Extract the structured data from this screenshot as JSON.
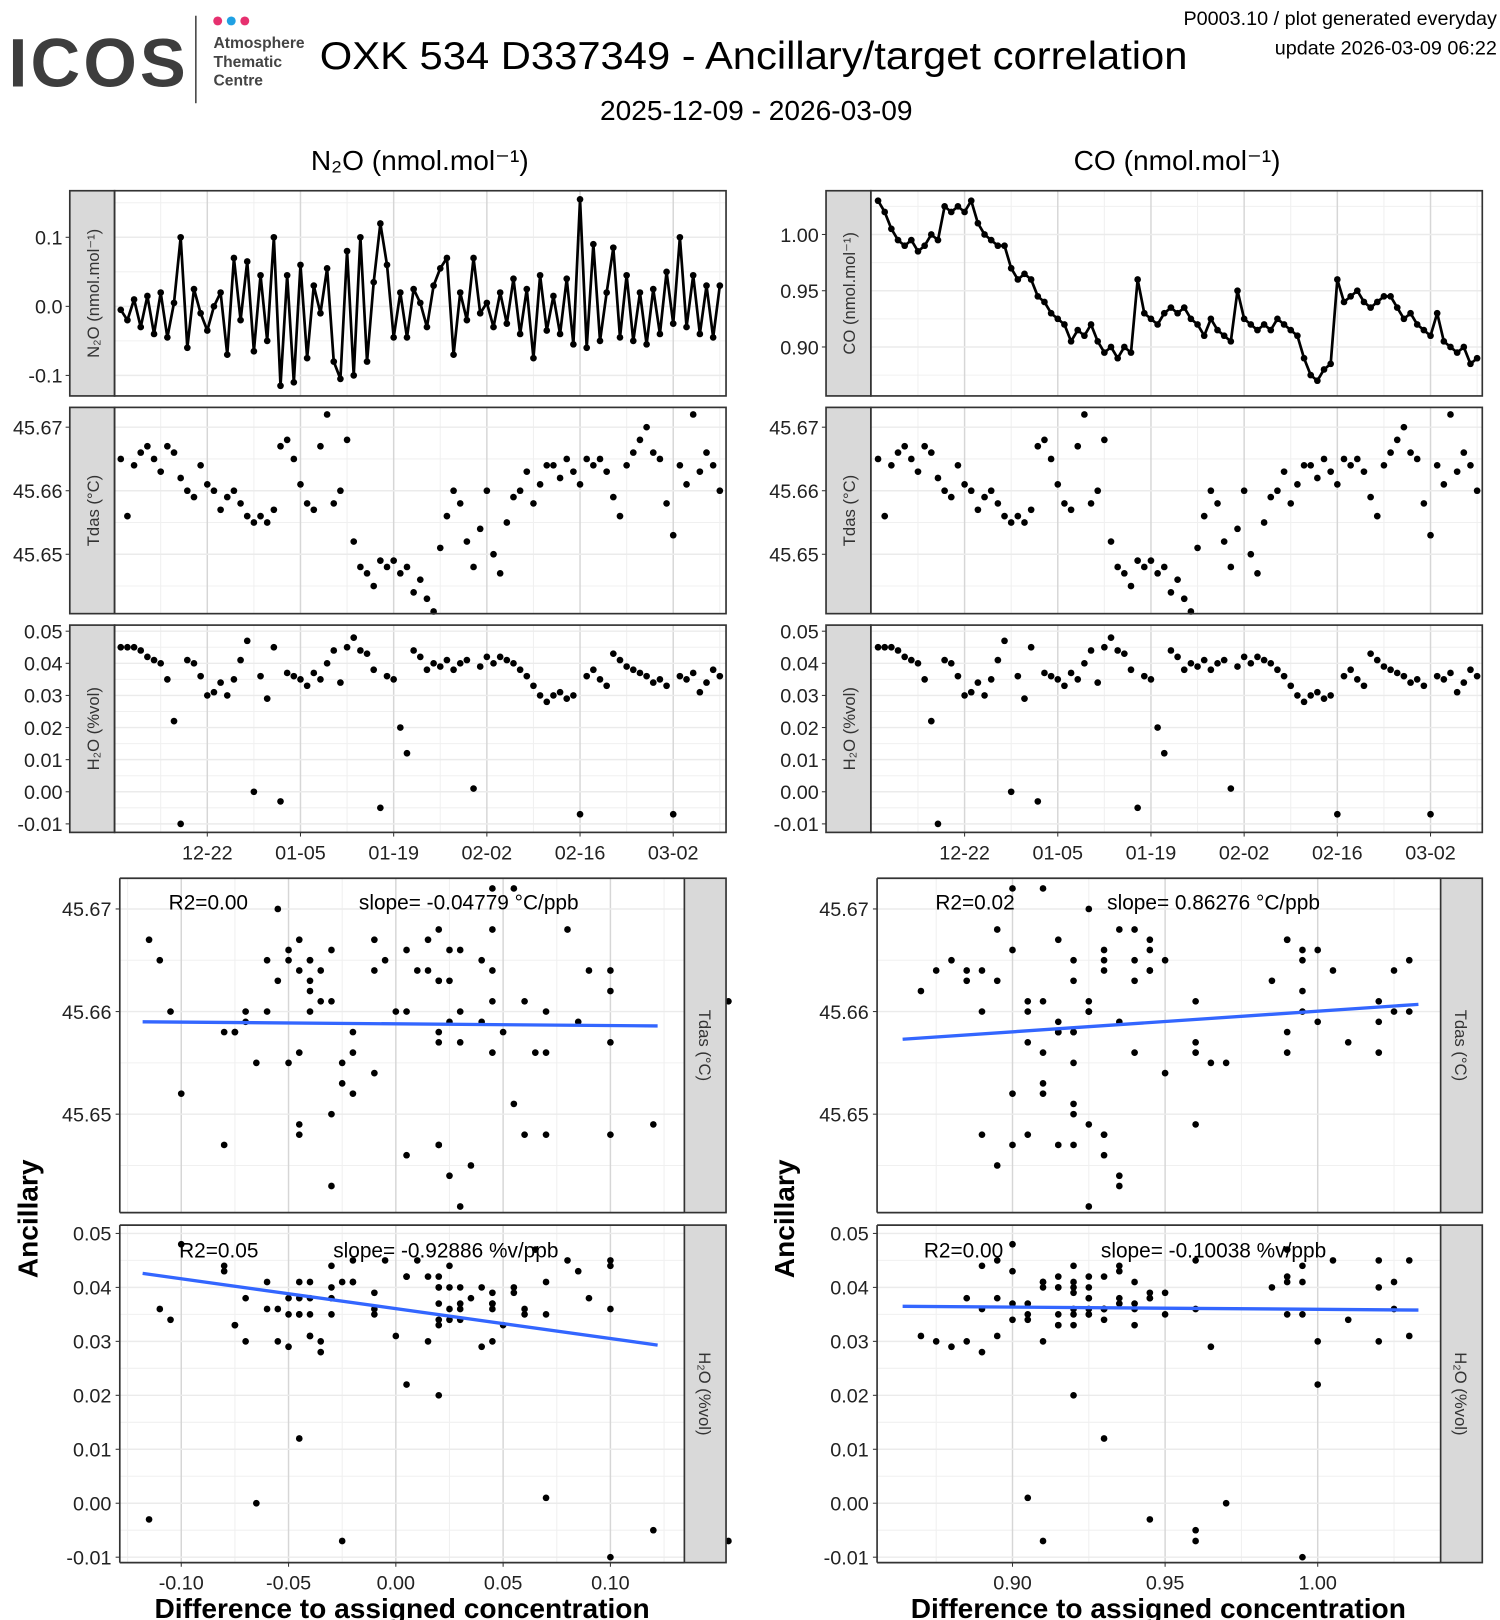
{
  "header": {
    "logo_text": "ICOS",
    "logo_sub": [
      "Atmosphere",
      "Thematic",
      "Centre"
    ],
    "logo_dot_colors": [
      "#e6306f",
      "#1fa0e3",
      "#e6306f"
    ],
    "title": "OXK 534 D337349 - Ancillary/target correlation",
    "date_range": "2025-12-09 - 2026-03-09",
    "meta_line1": "P0003.10 / plot generated everyday",
    "meta_line2": "update  2026-03-09 06:22"
  },
  "columns": {
    "n2o_title": "N₂O (nmol.mol⁻¹)",
    "co_title": "CO (nmol.mol⁻¹)"
  },
  "colors": {
    "fit_line": "#3366ff",
    "points": "#000000",
    "strip": "#d9d9d9"
  },
  "chart_data": [
    {
      "type": "line",
      "name": "timeseries",
      "start_date": "2025-12-09",
      "x_tick_labels": [
        "12-22",
        "01-05",
        "01-19",
        "02-02",
        "02-16",
        "03-02"
      ],
      "x_tick_days": [
        13,
        27,
        41,
        55,
        69,
        83
      ],
      "strip_labels": {
        "n2o": "N₂O (nmol.mol⁻¹)",
        "co": "CO (nmol.mol⁻¹)",
        "tdas": "Tdas (°C)",
        "h2o": "H₂O (%vol)"
      },
      "y_ticks": {
        "n2o": [
          "-0.1",
          "0.0",
          "0.1"
        ],
        "co": [
          "0.90",
          "0.95",
          "1.00"
        ],
        "tdas": [
          "45.65",
          "45.66",
          "45.67"
        ],
        "h2o": [
          "-0.01",
          "0.00",
          "0.01",
          "0.02",
          "0.03",
          "0.04",
          "0.05"
        ]
      },
      "series": {
        "n2o": [
          -0.005,
          -0.02,
          0.01,
          -0.03,
          0.015,
          -0.04,
          0.02,
          -0.045,
          0.005,
          0.1,
          -0.06,
          0.025,
          -0.01,
          -0.035,
          0.0,
          0.02,
          -0.07,
          0.07,
          -0.02,
          0.065,
          -0.065,
          0.045,
          -0.05,
          0.1,
          -0.115,
          0.045,
          -0.11,
          0.06,
          -0.075,
          0.03,
          -0.01,
          0.055,
          -0.08,
          -0.105,
          0.08,
          -0.1,
          0.1,
          -0.08,
          0.035,
          0.12,
          0.06,
          -0.045,
          0.02,
          -0.045,
          0.025,
          0.005,
          -0.03,
          0.03,
          0.055,
          0.07,
          -0.07,
          0.02,
          -0.02,
          0.07,
          -0.01,
          0.005,
          -0.03,
          0.02,
          -0.025,
          0.04,
          -0.04,
          0.025,
          -0.075,
          0.045,
          -0.035,
          0.015,
          -0.04,
          0.04,
          -0.055,
          0.155,
          -0.06,
          0.09,
          -0.05,
          0.02,
          0.085,
          -0.045,
          0.045,
          -0.05,
          0.02,
          -0.055,
          0.025,
          -0.04,
          0.05,
          -0.025,
          0.1,
          -0.03,
          0.045,
          -0.04,
          0.03,
          -0.045,
          0.03
        ],
        "co": [
          1.03,
          1.02,
          1.005,
          0.995,
          0.99,
          0.995,
          0.985,
          0.99,
          1.0,
          0.995,
          1.025,
          1.02,
          1.025,
          1.02,
          1.03,
          1.01,
          1.0,
          0.995,
          0.99,
          0.99,
          0.97,
          0.96,
          0.965,
          0.96,
          0.945,
          0.94,
          0.93,
          0.925,
          0.92,
          0.905,
          0.915,
          0.91,
          0.92,
          0.905,
          0.895,
          0.9,
          0.89,
          0.9,
          0.895,
          0.96,
          0.93,
          0.925,
          0.92,
          0.93,
          0.935,
          0.93,
          0.935,
          0.925,
          0.92,
          0.91,
          0.925,
          0.915,
          0.91,
          0.905,
          0.95,
          0.925,
          0.92,
          0.915,
          0.92,
          0.915,
          0.925,
          0.92,
          0.915,
          0.91,
          0.89,
          0.875,
          0.87,
          0.88,
          0.885,
          0.96,
          0.94,
          0.945,
          0.95,
          0.94,
          0.935,
          0.94,
          0.945,
          0.945,
          0.935,
          0.925,
          0.93,
          0.92,
          0.915,
          0.91,
          0.93,
          0.905,
          0.9,
          0.895,
          0.9,
          0.885,
          0.89
        ],
        "tdas": [
          45.665,
          45.656,
          45.664,
          45.666,
          45.667,
          45.665,
          45.663,
          45.667,
          45.666,
          45.662,
          45.66,
          45.659,
          45.664,
          45.661,
          45.66,
          45.657,
          45.659,
          45.66,
          45.658,
          45.656,
          45.655,
          45.656,
          45.655,
          45.657,
          45.667,
          45.668,
          45.665,
          45.661,
          45.658,
          45.657,
          45.667,
          45.672,
          45.658,
          45.66,
          45.668,
          45.652,
          45.648,
          45.647,
          45.645,
          45.649,
          45.648,
          45.649,
          45.647,
          45.648,
          45.644,
          45.646,
          45.643,
          45.641,
          45.651,
          45.656,
          45.66,
          45.658,
          45.652,
          45.648,
          45.654,
          45.66,
          45.65,
          45.647,
          45.655,
          45.659,
          45.66,
          45.663,
          45.658,
          45.661,
          45.664,
          45.664,
          45.662,
          45.665,
          45.663,
          45.661,
          45.665,
          45.664,
          45.665,
          45.663,
          45.659,
          45.656,
          45.664,
          45.666,
          45.668,
          45.67,
          45.666,
          45.665,
          45.658,
          45.653,
          45.664,
          45.661,
          45.672,
          45.663,
          45.666,
          45.664,
          45.66
        ],
        "h2o": [
          0.045,
          0.045,
          0.045,
          0.044,
          0.042,
          0.041,
          0.04,
          0.035,
          0.022,
          -0.01,
          0.041,
          0.04,
          0.036,
          0.03,
          0.031,
          0.034,
          0.03,
          0.035,
          0.041,
          0.047,
          0.0,
          0.036,
          0.029,
          0.045,
          -0.003,
          0.037,
          0.036,
          0.035,
          0.033,
          0.037,
          0.035,
          0.04,
          0.044,
          0.034,
          0.045,
          0.048,
          0.044,
          0.043,
          0.038,
          -0.005,
          0.036,
          0.035,
          0.02,
          0.012,
          0.044,
          0.042,
          0.038,
          0.04,
          0.039,
          0.041,
          0.038,
          0.04,
          0.041,
          0.001,
          0.039,
          0.042,
          0.04,
          0.042,
          0.041,
          0.04,
          0.038,
          0.036,
          0.033,
          0.03,
          0.028,
          0.03,
          0.031,
          0.029,
          0.03,
          -0.007,
          0.036,
          0.038,
          0.035,
          0.033,
          0.043,
          0.041,
          0.039,
          0.038,
          0.037,
          0.036,
          0.034,
          0.035,
          0.033,
          -0.007,
          0.036,
          0.035,
          0.037,
          0.031,
          0.034,
          0.038,
          0.036
        ]
      }
    },
    {
      "type": "scatter",
      "name": "correlation",
      "xlabel": "Difference to assigned concentration",
      "ylabel": "Ancillary",
      "x_ticks": {
        "n2o": [
          "-0.10",
          "-0.05",
          "0.00",
          "0.05",
          "0.10"
        ],
        "co": [
          "0.90",
          "0.95",
          "1.00"
        ]
      },
      "y_ticks": {
        "tdas": [
          "45.65",
          "45.66",
          "45.67"
        ],
        "h2o": [
          "-0.01",
          "0.00",
          "0.01",
          "0.02",
          "0.03",
          "0.04",
          "0.05"
        ]
      },
      "strip_labels": {
        "tdas": "Tdas (°C)",
        "h2o": "H₂O (%vol)"
      },
      "panels": [
        {
          "x": "n2o",
          "y": "tdas",
          "r2": "R2=0.00",
          "slope": "slope= -0.04779 °C/ppb",
          "fit": [
            [
              -0.118,
              45.659
            ],
            [
              0.122,
              45.6586
            ]
          ]
        },
        {
          "x": "n2o",
          "y": "h2o",
          "r2": "R2=0.05",
          "slope": "slope= -0.92886 %v/ppb",
          "fit": [
            [
              -0.118,
              0.0426
            ],
            [
              0.122,
              0.0293
            ]
          ]
        },
        {
          "x": "co",
          "y": "tdas",
          "r2": "R2=0.02",
          "slope": "slope= 0.86276 °C/ppb",
          "fit": [
            [
              0.864,
              45.6573
            ],
            [
              1.033,
              45.6607
            ]
          ]
        },
        {
          "x": "co",
          "y": "h2o",
          "r2": "R2=0.00",
          "slope": "slope= -0.10038 %v/ppb",
          "fit": [
            [
              0.864,
              0.0365
            ],
            [
              1.033,
              0.0358
            ]
          ]
        }
      ]
    }
  ]
}
